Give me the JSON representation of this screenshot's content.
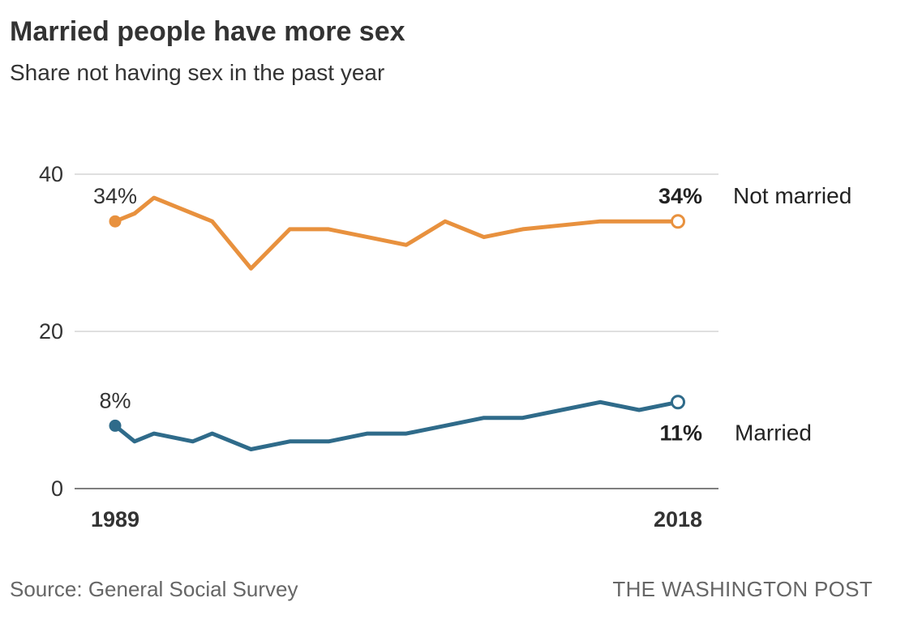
{
  "header": {
    "title": "Married people have more sex",
    "subtitle": "Share not having sex in the past year"
  },
  "footer": {
    "source": "Source: General Social Survey",
    "credit": "THE WASHINGTON POST"
  },
  "colors": {
    "not_married": "#e8913e",
    "married": "#2f6b8a",
    "grid": "#cccccc",
    "axis": "#555555"
  },
  "chart_data": {
    "type": "line",
    "title": "Married people have more sex",
    "subtitle": "Share not having sex in the past year",
    "xlabel": "",
    "ylabel": "",
    "xlim": [
      1989,
      2018
    ],
    "ylim": [
      0,
      40
    ],
    "yticks": [
      "0",
      "20",
      "40"
    ],
    "xticks": [
      "1989",
      "2018"
    ],
    "grid": true,
    "series": [
      {
        "name": "Not married",
        "color": "#e8913e",
        "start_label": "34%",
        "end_label": "34%",
        "x": [
          1989,
          1990,
          1991,
          1993,
          1994,
          1996,
          1998,
          2000,
          2002,
          2004,
          2006,
          2008,
          2010,
          2012,
          2014,
          2016,
          2018
        ],
        "values": [
          34,
          35,
          37,
          35,
          34,
          28,
          33,
          33,
          32,
          31,
          34,
          32,
          33,
          33.5,
          34,
          34,
          34
        ]
      },
      {
        "name": "Married",
        "color": "#2f6b8a",
        "start_label": "8%",
        "end_label": "11%",
        "x": [
          1989,
          1990,
          1991,
          1993,
          1994,
          1996,
          1998,
          2000,
          2002,
          2004,
          2006,
          2008,
          2010,
          2012,
          2014,
          2016,
          2018
        ],
        "values": [
          8,
          6,
          7,
          6,
          7,
          5,
          6,
          6,
          7,
          7,
          8,
          9,
          9,
          10,
          11,
          10,
          11
        ]
      }
    ]
  }
}
